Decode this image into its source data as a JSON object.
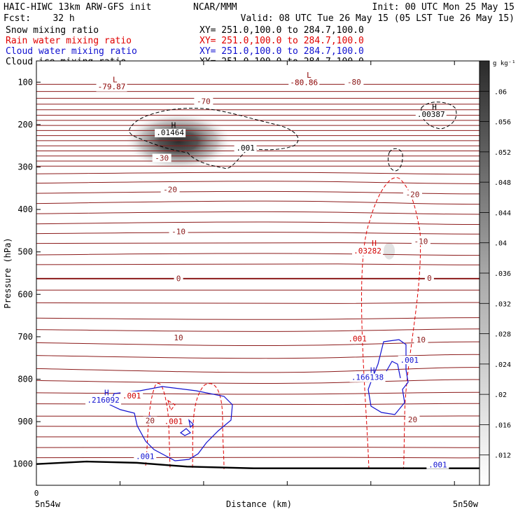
{
  "header": {
    "line1_left": "HAIC-HIWC 13km ARW-GFS init",
    "line1_center": "NCAR/MMM",
    "line1_right": "Init: 00 UTC Mon 25 May 15",
    "line2_left": "Fcst:    32 h",
    "line2_right": "Valid: 08 UTC Tue 26 May 15 (05 LST Tue 26 May 15)",
    "fields": [
      {
        "name": "Snow mixing ratio",
        "xy": "XY= 251.0,100.0 to 284.7,100.0",
        "color": "#000000"
      },
      {
        "name": "Rain water mixing ratio",
        "xy": "XY= 251.0,100.0 to 284.7,100.0",
        "color": "#e00000"
      },
      {
        "name": "Cloud water mixing ratio",
        "xy": "XY= 251.0,100.0 to 284.7,100.0",
        "color": "#1010d0"
      },
      {
        "name": "Cloud ice mixing ratio",
        "xy": "XY= 251.0,100.0 to 284.7,100.0",
        "color": "#000000"
      }
    ]
  },
  "chart_data": {
    "type": "heatmap",
    "ylabel": "Pressure (hPa)",
    "xlabel": "Distance (km)",
    "x_origin_label": "0",
    "x_left_label": "5n54w",
    "x_right_label": "5n50w",
    "x_ticks": [
      0,
      50,
      100,
      150,
      200,
      250
    ],
    "xlim": [
      0,
      270
    ],
    "ylim": [
      1050,
      50
    ],
    "y_ticks": [
      {
        "value": 100,
        "label": "100"
      },
      {
        "value": 200,
        "label": "200"
      },
      {
        "value": 300,
        "label": "300"
      },
      {
        "value": 400,
        "label": "400"
      },
      {
        "value": 500,
        "label": "500"
      },
      {
        "value": 600,
        "label": "600"
      },
      {
        "value": 700,
        "label": "700"
      },
      {
        "value": 800,
        "label": "800"
      },
      {
        "value": 900,
        "label": "900"
      },
      {
        "value": 1000,
        "label": "1000"
      }
    ],
    "colorbar": {
      "unit": "g kg⁻¹",
      "ticks": [
        ".012",
        ".016",
        ".02",
        ".024",
        ".028",
        ".032",
        ".036",
        ".04",
        ".044",
        ".048",
        ".052",
        ".056",
        ".06"
      ],
      "min": 0.008,
      "max": 0.064
    },
    "snow_max": {
      "x": 85,
      "p": 240,
      "value": 0.064
    },
    "temperature_lines": [
      {
        "p": 105,
        "tilt": 0
      },
      {
        "p": 122,
        "tilt": 0
      },
      {
        "p": 138,
        "tilt": 0
      },
      {
        "p": 152,
        "tilt": 0
      },
      {
        "p": 165,
        "tilt": 0
      },
      {
        "p": 178,
        "tilt": 0
      },
      {
        "p": 190,
        "tilt": 0
      },
      {
        "p": 202,
        "tilt": 0
      },
      {
        "p": 214,
        "tilt": 0
      },
      {
        "p": 226,
        "tilt": 0
      },
      {
        "p": 238,
        "tilt": 0
      },
      {
        "p": 250,
        "tilt": 0
      },
      {
        "p": 262,
        "tilt": 0
      },
      {
        "p": 274,
        "tilt": 0
      },
      {
        "p": 286,
        "tilt": 0
      },
      {
        "p": 298,
        "tilt": 0
      },
      {
        "p": 316,
        "tilt": -3
      },
      {
        "p": 338,
        "tilt": -4
      },
      {
        "p": 362,
        "tilt": -4
      },
      {
        "p": 386,
        "tilt": -5
      },
      {
        "p": 410,
        "tilt": -4
      },
      {
        "p": 434,
        "tilt": -4
      },
      {
        "p": 457,
        "tilt": -3
      },
      {
        "p": 480,
        "tilt": -2
      },
      {
        "p": 507,
        "tilt": -3
      },
      {
        "p": 530,
        "tilt": -2
      },
      {
        "p": 563,
        "tilt": 0
      },
      {
        "p": 590,
        "tilt": 0
      },
      {
        "p": 620,
        "tilt": 2
      },
      {
        "p": 656,
        "tilt": 3
      },
      {
        "p": 683,
        "tilt": 4
      },
      {
        "p": 714,
        "tilt": 6
      },
      {
        "p": 744,
        "tilt": 6
      },
      {
        "p": 775,
        "tilt": 8
      },
      {
        "p": 803,
        "tilt": 6
      },
      {
        "p": 832,
        "tilt": 3
      },
      {
        "p": 858,
        "tilt": 2
      },
      {
        "p": 887,
        "tilt": 1
      },
      {
        "p": 911,
        "tilt": 1
      },
      {
        "p": 936,
        "tilt": 0
      },
      {
        "p": 961,
        "tilt": -1
      },
      {
        "p": 985,
        "tilt": -1
      }
    ],
    "temperature_labels": [
      {
        "text": "-70",
        "x": 100,
        "p": 148
      },
      {
        "text": "-30",
        "x": 75,
        "p": 282
      },
      {
        "text": "-20",
        "x": 80,
        "p": 356
      },
      {
        "text": "-20",
        "x": 225,
        "p": 368
      },
      {
        "text": "-10",
        "x": 85,
        "p": 455
      },
      {
        "text": "-10",
        "x": 230,
        "p": 478
      },
      {
        "text": "0",
        "x": 85,
        "p": 566
      },
      {
        "text": "0",
        "x": 235,
        "p": 565
      },
      {
        "text": "10",
        "x": 85,
        "p": 705
      },
      {
        "text": "10",
        "x": 230,
        "p": 710
      },
      {
        "text": "20",
        "x": 68,
        "p": 901
      },
      {
        "text": "20",
        "x": 225,
        "p": 898
      },
      {
        "text": "-80",
        "x": 190,
        "p": 103
      }
    ],
    "extrema": [
      {
        "letter": "L",
        "value": "-79.87",
        "x": 47,
        "p": 100,
        "vx": 45,
        "vp": 117,
        "color": "#8b0000"
      },
      {
        "letter": "L",
        "value": "-80.86",
        "x": 163,
        "p": 90,
        "vx": 160,
        "vp": 107,
        "color": "#8b0000"
      },
      {
        "letter": "H",
        "value": ".01464",
        "x": 82,
        "p": 208,
        "vx": 80,
        "vp": 225,
        "color": "#000000"
      },
      {
        "letter": "H",
        "value": ".00387",
        "x": 238,
        "p": 165,
        "vx": 236,
        "vp": 182,
        "color": "#000000"
      },
      {
        "letter": "H",
        "value": ".03282",
        "x": 202,
        "p": 486,
        "vx": 198,
        "vp": 504,
        "color": "#d00000"
      },
      {
        "letter": "H",
        "value": ".216092",
        "x": 42,
        "p": 838,
        "vx": 40,
        "vp": 855,
        "color": "#1010d0"
      },
      {
        "letter": "H",
        "value": ".166138",
        "x": 201,
        "p": 785,
        "vx": 198,
        "vp": 802,
        "color": "#1010d0"
      }
    ],
    "contour_labels": [
      {
        "text": ".001",
        "x": 125,
        "p": 258,
        "color": "#000000"
      },
      {
        "text": ".001",
        "x": 192,
        "p": 708,
        "color": "#d00000"
      },
      {
        "text": ".001",
        "x": 223,
        "p": 758,
        "color": "#1010d0"
      },
      {
        "text": ".001",
        "x": 57,
        "p": 842,
        "color": "#d00000"
      },
      {
        "text": ".001",
        "x": 82,
        "p": 902,
        "color": "#d00000"
      },
      {
        "text": ".001",
        "x": 65,
        "p": 985,
        "color": "#1010d0"
      },
      {
        "text": ".001",
        "x": 240,
        "p": 1005,
        "color": "#1010d0"
      }
    ],
    "terrain": [
      [
        0,
        1000
      ],
      [
        30,
        994
      ],
      [
        60,
        997
      ],
      [
        90,
        1006
      ],
      [
        130,
        1010
      ],
      [
        200,
        1010
      ],
      [
        270,
        1010
      ]
    ]
  }
}
